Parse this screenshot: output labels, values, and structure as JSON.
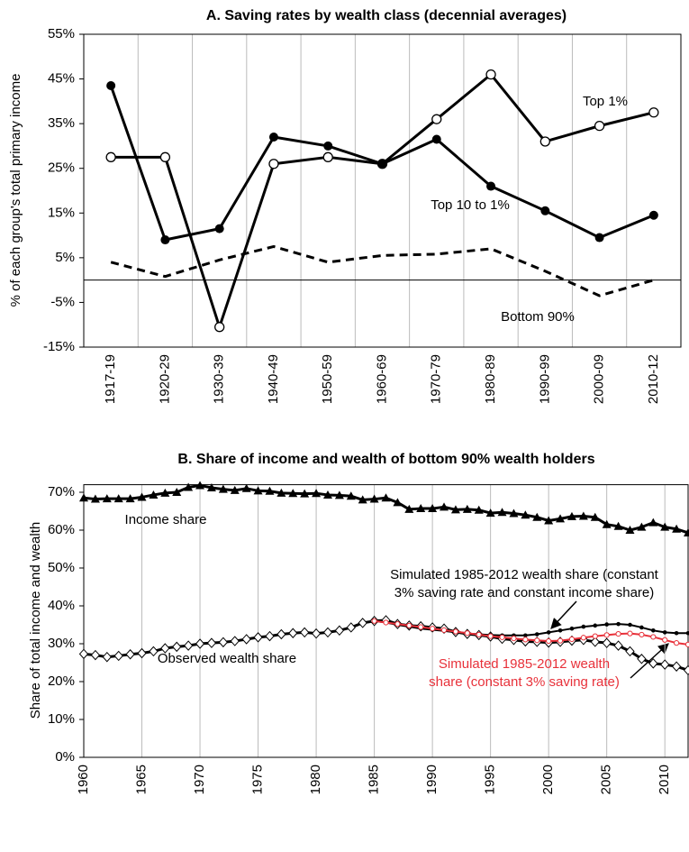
{
  "chart_data": [
    {
      "type": "line",
      "title": "A. Saving rates by wealth class (decennial averages)",
      "y_label": "% of each group's total primary income",
      "categories": [
        "1917-19",
        "1920-29",
        "1930-39",
        "1940-49",
        "1950-59",
        "1960-69",
        "1970-79",
        "1980-89",
        "1990-99",
        "2000-09",
        "2010-12"
      ],
      "ylim": [
        -15,
        55
      ],
      "yticks": [
        {
          "value": -15,
          "label": "-15%"
        },
        {
          "value": -5,
          "label": "-5%"
        },
        {
          "value": 5,
          "label": "5%"
        },
        {
          "value": 15,
          "label": "15%"
        },
        {
          "value": 25,
          "label": "25%"
        },
        {
          "value": 35,
          "label": "35%"
        },
        {
          "value": 45,
          "label": "45%"
        },
        {
          "value": 55,
          "label": "55%"
        }
      ],
      "grid": true,
      "series": [
        {
          "name": "Top 1%",
          "color": "#000000",
          "marker": "open-circle",
          "values": [
            27.5,
            27.5,
            -10.5,
            26,
            27.5,
            26,
            36,
            46,
            31,
            34.5,
            37.5
          ]
        },
        {
          "name": "Top 10 to 1%",
          "color": "#000000",
          "marker": "filled-circle",
          "values": [
            43.5,
            9,
            11.5,
            32,
            30,
            26,
            31.5,
            21,
            15.5,
            9.5,
            14.5
          ]
        },
        {
          "name": "Bottom 90%",
          "color": "#000000",
          "marker": "none",
          "dashed": true,
          "values": [
            4,
            0.8,
            4.5,
            7.5,
            4,
            5.5,
            5.8,
            7,
            2,
            -3.5,
            0
          ]
        }
      ]
    },
    {
      "type": "line",
      "title": "B. Share of income and wealth of bottom 90% wealth holders",
      "y_label": "Share of total income and wealth",
      "x": [
        1960,
        1961,
        1962,
        1963,
        1964,
        1965,
        1966,
        1967,
        1968,
        1969,
        1970,
        1971,
        1972,
        1973,
        1974,
        1975,
        1976,
        1977,
        1978,
        1979,
        1980,
        1981,
        1982,
        1983,
        1984,
        1985,
        1986,
        1987,
        1988,
        1989,
        1990,
        1991,
        1992,
        1993,
        1994,
        1995,
        1996,
        1997,
        1998,
        1999,
        2000,
        2001,
        2002,
        2003,
        2004,
        2005,
        2006,
        2007,
        2008,
        2009,
        2010,
        2011,
        2012
      ],
      "xlim": [
        1960,
        2012
      ],
      "xticks": [
        1960,
        1965,
        1970,
        1975,
        1980,
        1985,
        1990,
        1995,
        2000,
        2005,
        2010
      ],
      "ylim": [
        0,
        72
      ],
      "yticks": [
        {
          "value": 0,
          "label": "0%"
        },
        {
          "value": 10,
          "label": "10%"
        },
        {
          "value": 20,
          "label": "20%"
        },
        {
          "value": 30,
          "label": "30%"
        },
        {
          "value": 40,
          "label": "40%"
        },
        {
          "value": 50,
          "label": "50%"
        },
        {
          "value": 60,
          "label": "60%"
        },
        {
          "value": 70,
          "label": "70%"
        }
      ],
      "grid": true,
      "series": [
        {
          "name": "Income share",
          "color": "#000000",
          "marker": "triangle",
          "values": [
            68.5,
            68.2,
            68.3,
            68.3,
            68.3,
            68.7,
            69.3,
            69.8,
            70,
            71.3,
            71.8,
            71.2,
            70.8,
            70.5,
            71,
            70.4,
            70.3,
            69.8,
            69.7,
            69.6,
            69.7,
            69.3,
            69.2,
            69,
            68,
            68.2,
            68.5,
            67.3,
            65.5,
            65.7,
            65.7,
            66.1,
            65.4,
            65.5,
            65.3,
            64.5,
            64.7,
            64.4,
            64,
            63.4,
            62.5,
            63,
            63.6,
            63.7,
            63.4,
            61.5,
            61,
            60,
            60.8,
            62,
            60.8,
            60.3,
            59.3
          ]
        },
        {
          "name": "Observed wealth share",
          "color": "#000000",
          "marker": "diamond",
          "values": [
            27.3,
            27,
            26.5,
            26.8,
            27.2,
            27.5,
            28,
            28.8,
            29.2,
            29.5,
            30,
            30.2,
            30.4,
            30.7,
            31.2,
            31.7,
            32,
            32.5,
            32.8,
            33,
            32.7,
            33,
            33.5,
            34.3,
            35.5,
            36,
            36.2,
            35.2,
            34.8,
            34.6,
            34.3,
            34,
            33.1,
            32.6,
            32.3,
            31.9,
            31.3,
            31,
            30.6,
            30.5,
            30.3,
            30.5,
            30.8,
            31,
            30.5,
            30.2,
            29.5,
            28,
            26,
            24.8,
            24.5,
            24,
            23
          ]
        },
        {
          "name": [
            "Simulated 1985-2012 wealth share (constant",
            "3% saving rate and constant income share)"
          ],
          "color": "#000000",
          "marker": "dot",
          "values": [
            null,
            null,
            null,
            null,
            null,
            null,
            null,
            null,
            null,
            null,
            null,
            null,
            null,
            null,
            null,
            null,
            null,
            null,
            null,
            null,
            null,
            null,
            null,
            null,
            null,
            36,
            35.6,
            35,
            34.5,
            34,
            33.7,
            33.4,
            33,
            32.7,
            32.5,
            32.3,
            32.2,
            32.2,
            32.2,
            32.5,
            33,
            33.5,
            34,
            34.5,
            34.8,
            35.1,
            35.2,
            35,
            34.3,
            33.5,
            33,
            32.8,
            32.8
          ]
        },
        {
          "name": [
            "Simulated 1985-2012 wealth",
            "share (constant 3% saving rate)"
          ],
          "color": "#e8313a",
          "marker": "small-open-circle",
          "values": [
            null,
            null,
            null,
            null,
            null,
            null,
            null,
            null,
            null,
            null,
            null,
            null,
            null,
            null,
            null,
            null,
            null,
            null,
            null,
            null,
            null,
            null,
            null,
            null,
            null,
            36,
            35.6,
            35.2,
            34.8,
            34.4,
            34,
            33.6,
            33.2,
            32.8,
            32.4,
            32,
            31.7,
            31.4,
            31.1,
            30.9,
            30.7,
            30.8,
            31.2,
            31.6,
            32,
            32.3,
            32.6,
            32.7,
            32.4,
            31.8,
            31,
            30.2,
            29.8
          ]
        }
      ]
    }
  ]
}
